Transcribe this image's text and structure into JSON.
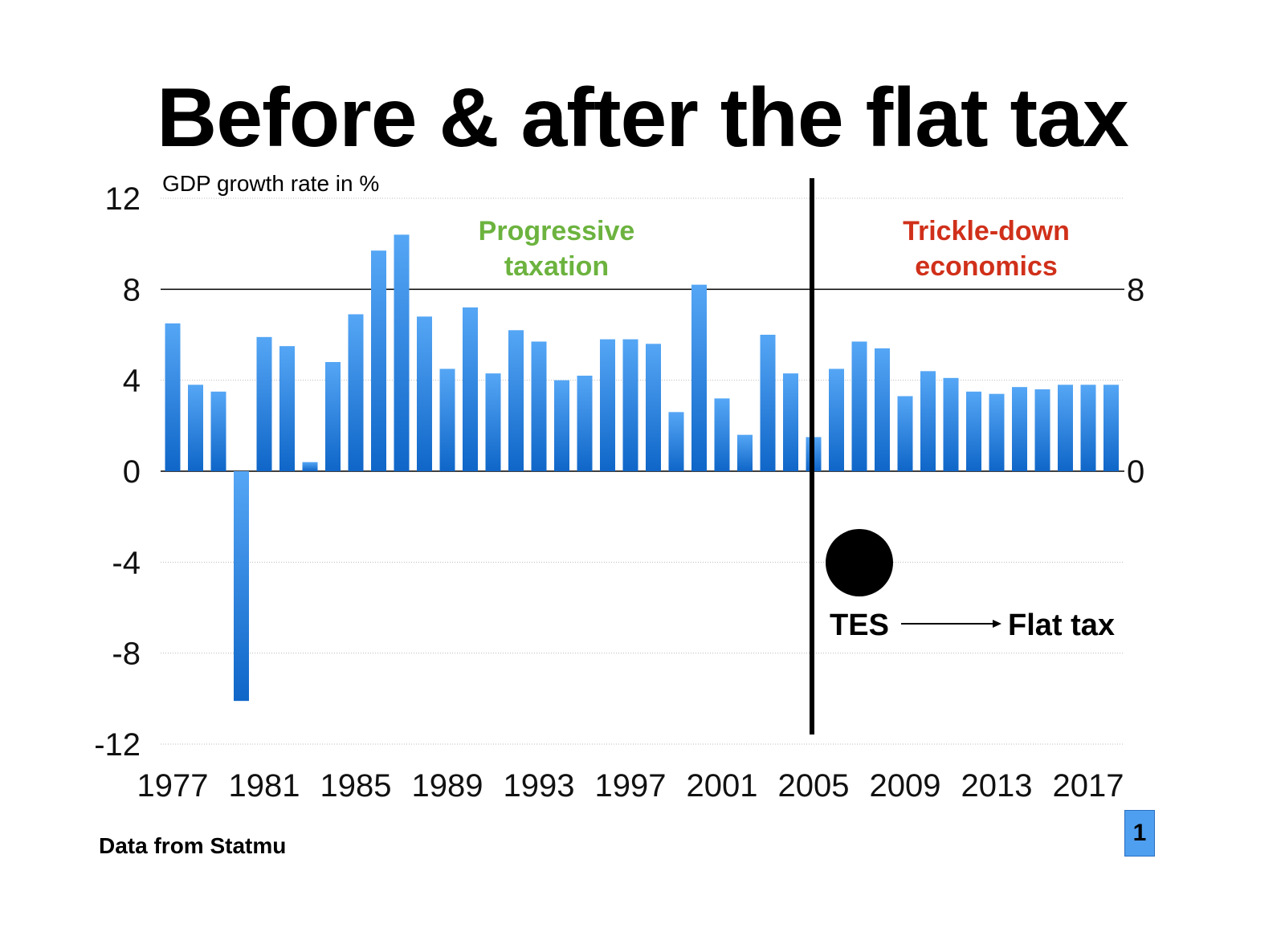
{
  "title": "Before & after the flat tax",
  "source": "Data from Statmu",
  "page_number": "1",
  "chart_data": {
    "type": "bar",
    "title": "Before & after the flat tax",
    "ylabel": "GDP growth rate in %",
    "xlabel": "",
    "ylim": [
      -12,
      12
    ],
    "yticks": [
      12,
      8,
      4,
      0,
      -4,
      -8,
      -12
    ],
    "right_yticks": [
      8,
      0
    ],
    "xtick_labels": [
      "1977",
      "1981",
      "1985",
      "1989",
      "1993",
      "1997",
      "2001",
      "2005",
      "2009",
      "2013",
      "2017"
    ],
    "grid": true,
    "categories": [
      1977,
      1978,
      1979,
      1980,
      1981,
      1982,
      1983,
      1984,
      1985,
      1986,
      1987,
      1988,
      1989,
      1990,
      1991,
      1992,
      1993,
      1994,
      1995,
      1996,
      1997,
      1998,
      1999,
      2000,
      2001,
      2002,
      2003,
      2004,
      2005,
      2006,
      2007,
      2008,
      2009,
      2010,
      2011,
      2012,
      2013,
      2014,
      2015,
      2016,
      2017,
      2018
    ],
    "values": [
      6.5,
      3.8,
      3.5,
      -10.1,
      5.9,
      5.5,
      0.4,
      4.8,
      6.9,
      9.7,
      10.4,
      6.8,
      4.5,
      7.2,
      4.3,
      6.2,
      5.7,
      4.0,
      4.2,
      5.8,
      5.8,
      5.6,
      2.6,
      8.2,
      3.2,
      1.6,
      6.0,
      4.3,
      1.5,
      4.5,
      5.7,
      5.4,
      3.3,
      4.4,
      4.1,
      3.5,
      3.4,
      3.7,
      3.6,
      3.8,
      3.8,
      3.8
    ],
    "bar_color": "#2f86e6",
    "reference_line": 8,
    "divider_year": 2005,
    "annotations": {
      "left_region": [
        "Progressive",
        "taxation"
      ],
      "left_color": "#6cb33f",
      "right_region": [
        "Trickle-down",
        "economics"
      ],
      "right_color": "#d0301a",
      "tes_label": "TES",
      "flat_tax_label": "Flat tax"
    }
  }
}
